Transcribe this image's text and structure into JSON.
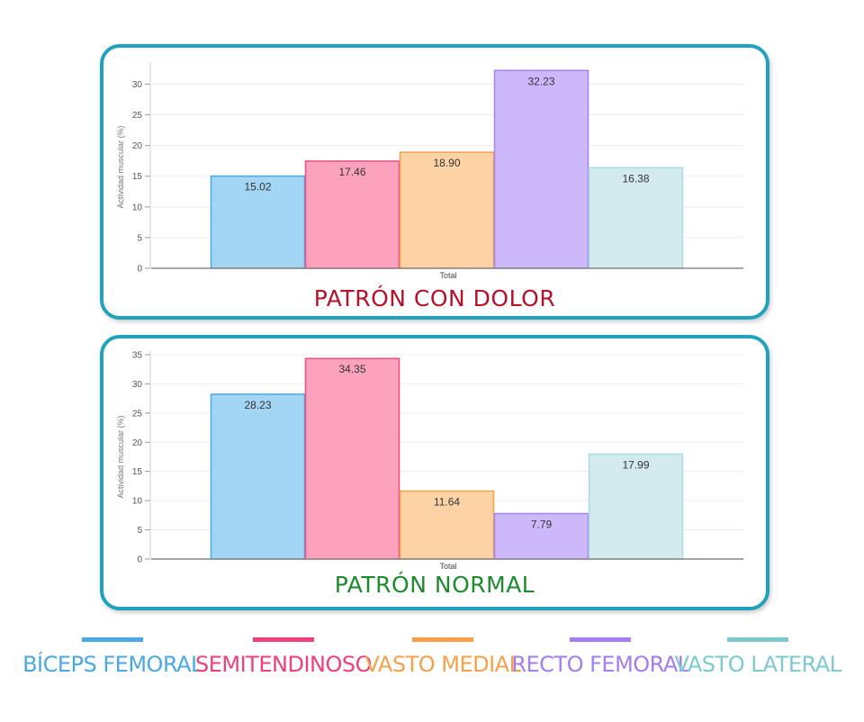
{
  "colors": {
    "frame": "#1fa3bd",
    "series": [
      {
        "fill": "#a3d5f5",
        "stroke": "#4aa8e3",
        "legend": "#4aa8e3"
      },
      {
        "fill": "#fca2bc",
        "stroke": "#ef4d84",
        "legend": "#ef3f7c"
      },
      {
        "fill": "#fdd3a6",
        "stroke": "#f5a04a",
        "legend": "#f6a04a"
      },
      {
        "fill": "#cdb8fb",
        "stroke": "#a683f2",
        "legend": "#a27ef2"
      },
      {
        "fill": "#d3ebee",
        "stroke": "#a9dbe1",
        "legend": "#7ccace"
      }
    ]
  },
  "panels": [
    {
      "title": "PATRÓN CON DOLOR",
      "title_color": "#b5112a"
    },
    {
      "title": "PATRÓN NORMAL",
      "title_color": "#1d8a2e"
    }
  ],
  "legend": {
    "items": [
      "BÍCEPS FEMORAL",
      "SEMITENDINOSO",
      "VASTO MEDIAL",
      "RECTO FEMORAL",
      "VASTO LATERAL"
    ]
  },
  "chart_data": [
    {
      "type": "bar",
      "title": "PATRÓN CON DOLOR",
      "categories": [
        "Total"
      ],
      "xlabel": "Total",
      "ylabel": "Actividad muscular (%)",
      "ylim": [
        0,
        33
      ],
      "yticks": [
        0,
        5,
        10,
        15,
        20,
        25,
        30
      ],
      "grid": true,
      "series": [
        {
          "name": "BÍCEPS FEMORAL",
          "values": [
            15.02
          ],
          "label": "15.02"
        },
        {
          "name": "SEMITENDINOSO",
          "values": [
            17.46
          ],
          "label": "17.46"
        },
        {
          "name": "VASTO MEDIAL",
          "values": [
            18.9
          ],
          "label": "18.90"
        },
        {
          "name": "RECTO FEMORAL",
          "values": [
            32.23
          ],
          "label": "32.23"
        },
        {
          "name": "VASTO LATERAL",
          "values": [
            16.38
          ],
          "label": "16.38"
        }
      ]
    },
    {
      "type": "bar",
      "title": "PATRÓN NORMAL",
      "categories": [
        "Total"
      ],
      "xlabel": "Total",
      "ylabel": "Actividad muscular (%)",
      "ylim": [
        0,
        35
      ],
      "yticks": [
        0,
        5,
        10,
        15,
        20,
        25,
        30,
        35
      ],
      "grid": true,
      "series": [
        {
          "name": "BÍCEPS FEMORAL",
          "values": [
            28.23
          ],
          "label": "28.23"
        },
        {
          "name": "SEMITENDINOSO",
          "values": [
            34.35
          ],
          "label": "34.35"
        },
        {
          "name": "VASTO MEDIAL",
          "values": [
            11.64
          ],
          "label": "11.64"
        },
        {
          "name": "RECTO FEMORAL",
          "values": [
            7.79
          ],
          "label": "7.79"
        },
        {
          "name": "VASTO LATERAL",
          "values": [
            17.99
          ],
          "label": "17.99"
        }
      ]
    }
  ]
}
